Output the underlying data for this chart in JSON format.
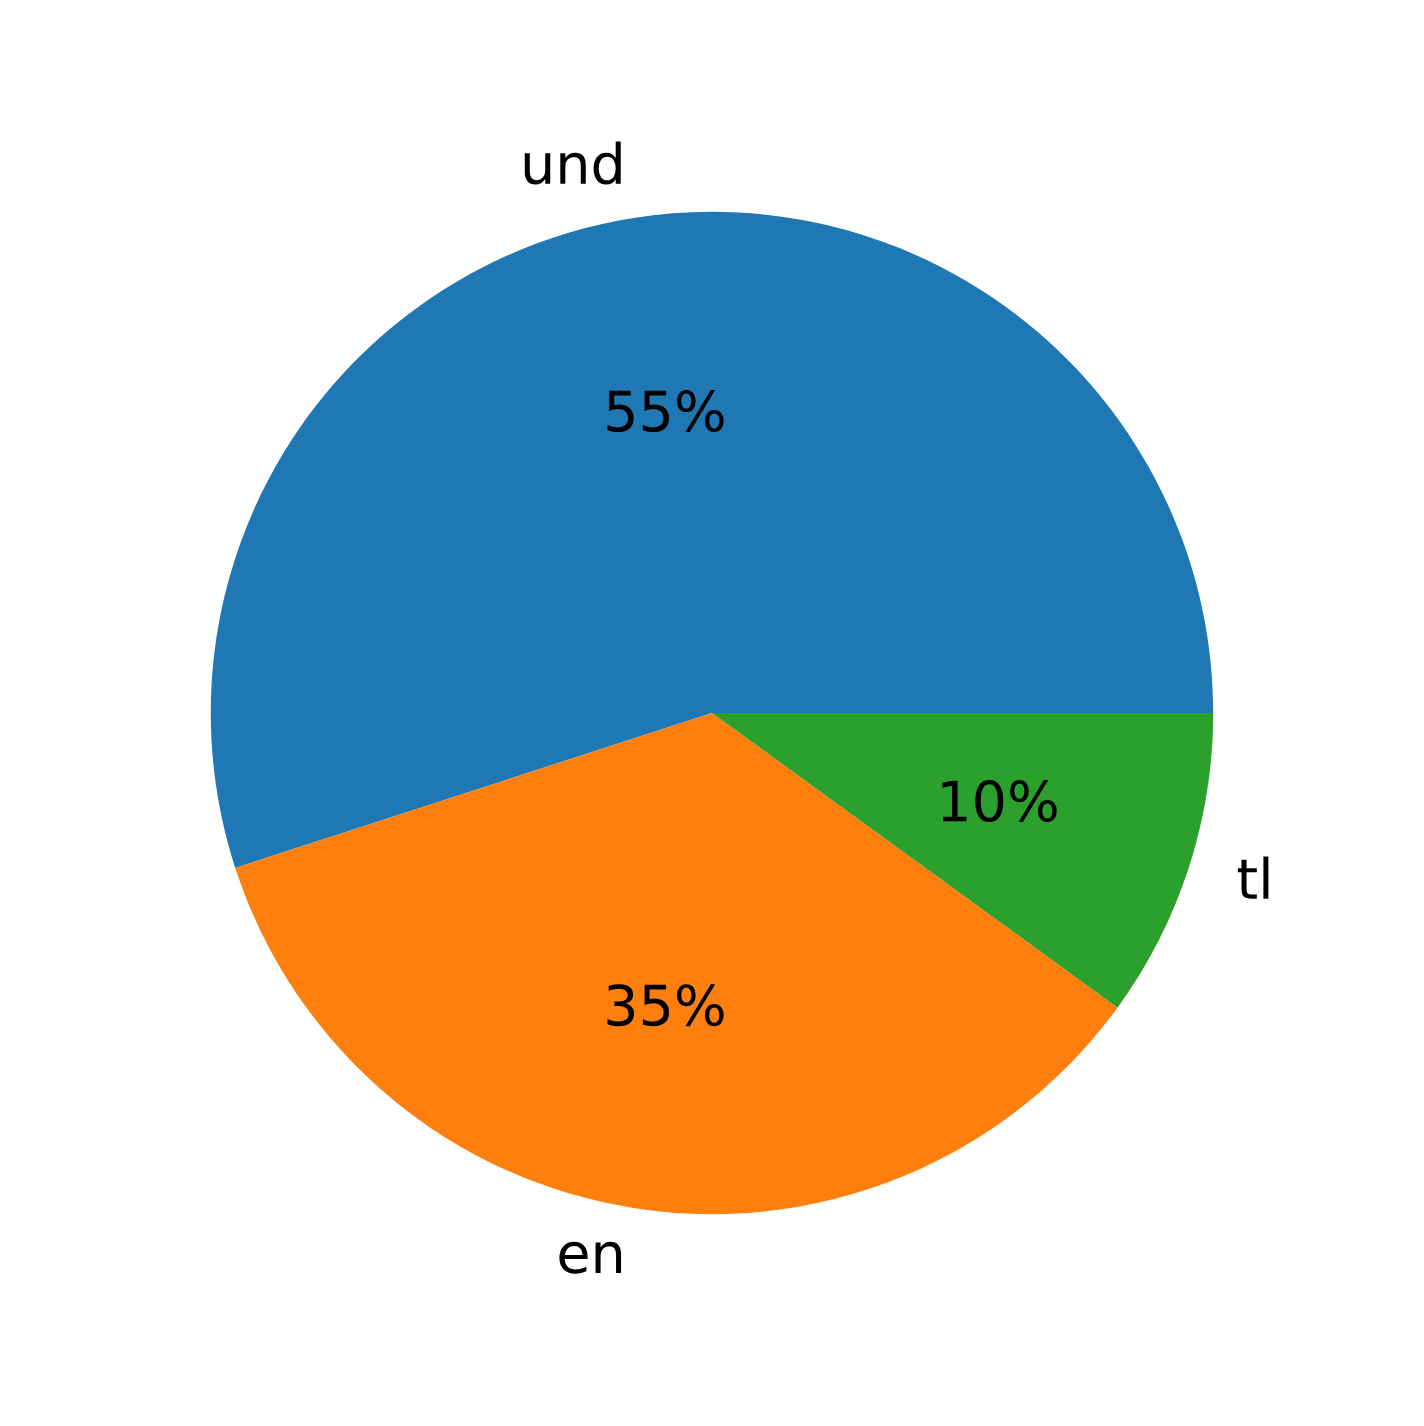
{
  "chart_data": {
    "type": "pie",
    "categories": [
      "und",
      "en",
      "tl"
    ],
    "values": [
      55,
      35,
      10
    ],
    "colors": [
      "#1f77b4",
      "#ff7f0e",
      "#2ca02c"
    ],
    "value_labels": [
      "55%",
      "35%",
      "10%"
    ]
  }
}
